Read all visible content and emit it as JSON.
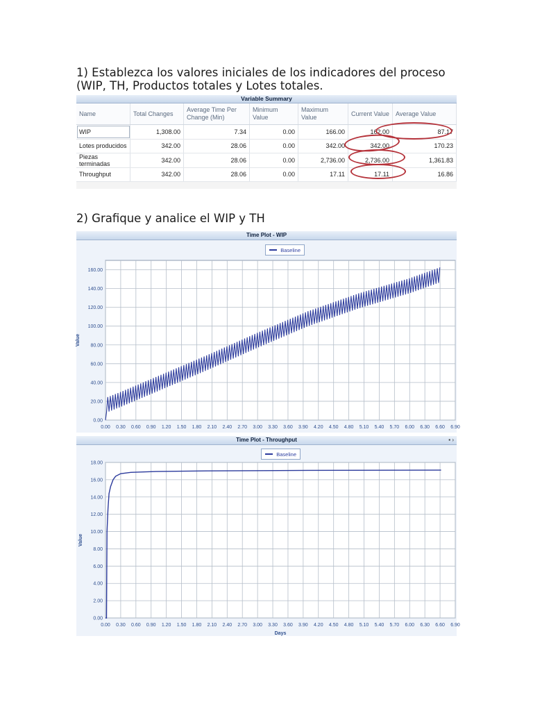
{
  "q1": "1) Establezca los valores iniciales de los indicadores del proceso (WIP, TH, Productos totales y Lotes totales.",
  "q2": "2) Grafique y analice el WIP y TH",
  "summary": {
    "title": "Variable Summary",
    "headers": [
      "Name",
      "Total Changes",
      "Average Time Per Change (Min)",
      "Minimum Value",
      "Maximum Value",
      "Current Value",
      "Average Value"
    ],
    "rows": [
      [
        "WIP",
        "1,308.00",
        "7.34",
        "0.00",
        "166.00",
        "162.00",
        "87.17"
      ],
      [
        "Lotes producidos",
        "342.00",
        "28.06",
        "0.00",
        "342.00",
        "342.00",
        "170.23"
      ],
      [
        "Piezas terminadas",
        "342.00",
        "28.06",
        "0.00",
        "2,736.00",
        "2,736.00",
        "1,361.83"
      ],
      [
        "Throughput",
        "342.00",
        "28.06",
        "0.00",
        "17.11",
        "17.11",
        "16.86"
      ]
    ]
  },
  "chart_data": [
    {
      "type": "line",
      "title": "Time Plot - WIP",
      "ylabel": "Value",
      "xlabel": "",
      "legend": [
        "Baseline"
      ],
      "legend_position": "top-center",
      "grid": true,
      "xlim": [
        0,
        6.9
      ],
      "ylim": [
        0,
        170
      ],
      "x_ticks": [
        "0.00",
        "0.30",
        "0.60",
        "0.90",
        "1.20",
        "1.50",
        "1.80",
        "2.10",
        "2.40",
        "2.70",
        "3.00",
        "3.30",
        "3.60",
        "3.90",
        "4.20",
        "4.50",
        "4.80",
        "5.10",
        "5.40",
        "5.70",
        "6.00",
        "6.30",
        "6.60",
        "6.90"
      ],
      "y_ticks": [
        "0.00",
        "20.00",
        "40.00",
        "60.00",
        "80.00",
        "100.00",
        "120.00",
        "140.00",
        "160.00"
      ],
      "series": [
        {
          "name": "Baseline",
          "color": "#2b3a9c",
          "x": [
            0,
            0.02,
            0.3,
            1.0,
            2.0,
            3.0,
            4.0,
            5.0,
            6.0,
            6.62
          ],
          "y": [
            0,
            16,
            22,
            38,
            61,
            85,
            108,
            127,
            143,
            155
          ],
          "oscillation_amplitude": 8
        }
      ]
    },
    {
      "type": "line",
      "title": "Time Plot - Throughput",
      "ylabel": "Value",
      "xlabel": "Days",
      "legend": [
        "Baseline"
      ],
      "legend_position": "top-center",
      "grid": true,
      "xlim": [
        0,
        6.9
      ],
      "ylim": [
        0,
        18
      ],
      "x_ticks": [
        "0.00",
        "0.30",
        "0.60",
        "0.90",
        "1.20",
        "1.50",
        "1.80",
        "2.10",
        "2.40",
        "2.70",
        "3.00",
        "3.30",
        "3.60",
        "3.90",
        "4.20",
        "4.50",
        "4.80",
        "5.10",
        "5.40",
        "5.70",
        "6.00",
        "6.30",
        "6.60",
        "6.90"
      ],
      "y_ticks": [
        "0.00",
        "2.00",
        "4.00",
        "6.00",
        "8.00",
        "10.00",
        "12.00",
        "14.00",
        "16.00",
        "18.00"
      ],
      "series": [
        {
          "name": "Baseline",
          "color": "#2b3a9c",
          "x": [
            0,
            0.02,
            0.03,
            0.05,
            0.07,
            0.1,
            0.15,
            0.2,
            0.3,
            0.5,
            1.0,
            2.0,
            4.0,
            6.62
          ],
          "y": [
            0,
            0,
            10,
            12.7,
            14.4,
            15.2,
            16.0,
            16.4,
            16.7,
            16.85,
            16.95,
            17.02,
            17.08,
            17.11
          ]
        }
      ]
    }
  ],
  "wip_legend": "Baseline",
  "th_legend": "Baseline"
}
